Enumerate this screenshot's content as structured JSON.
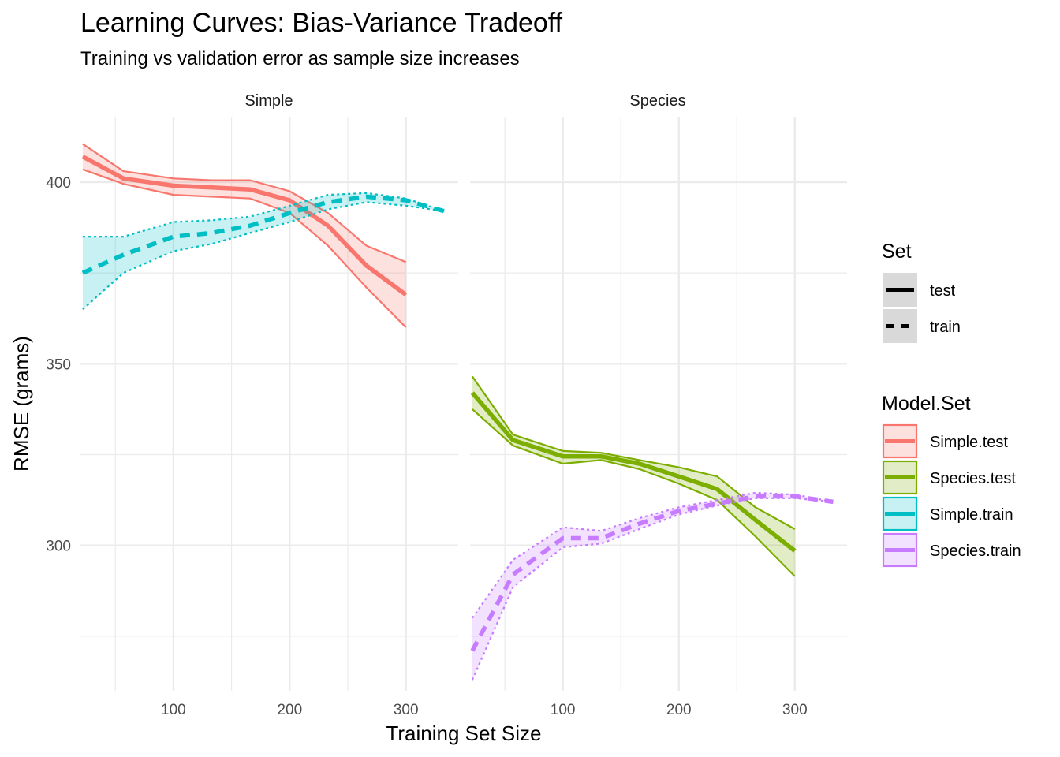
{
  "chart_data": {
    "type": "line",
    "title": "Learning Curves: Bias-Variance Tradeoff",
    "subtitle": "Training vs validation error as sample size increases",
    "xlabel": "Training Set Size",
    "ylabel": "RMSE (grams)",
    "xlim": [
      20,
      345
    ],
    "ylim": [
      260,
      418
    ],
    "x_ticks": [
      100,
      200,
      300
    ],
    "x_tick_labels": [
      "100",
      "200",
      "300"
    ],
    "y_ticks": [
      300,
      350,
      400
    ],
    "y_tick_labels": [
      "300",
      "350",
      "400"
    ],
    "grid": true,
    "facets": [
      "Simple",
      "Species"
    ],
    "legends": [
      {
        "title": "Set",
        "placement": "right",
        "entries": [
          {
            "label": "test",
            "linetype": "solid"
          },
          {
            "label": "train",
            "linetype": "dashed"
          }
        ]
      },
      {
        "title": "Model.Set",
        "placement": "right",
        "entries": [
          {
            "label": "Simple.test",
            "color": "#F8766D"
          },
          {
            "label": "Species.test",
            "color": "#7CAE00"
          },
          {
            "label": "Simple.train",
            "color": "#00BFC4"
          },
          {
            "label": "Species.train",
            "color": "#C77CFF"
          }
        ]
      }
    ],
    "series": [
      {
        "name": "Simple.test",
        "facet": "Simple",
        "set": "test",
        "color": "#F8766D",
        "x": [
          22,
          57,
          100,
          133,
          166,
          200,
          233,
          266,
          300
        ],
        "values": [
          407,
          401,
          399,
          398.5,
          398,
          395,
          388,
          377,
          369
        ],
        "lower": [
          403.5,
          399.5,
          396.5,
          396,
          395.5,
          391.5,
          382.5,
          371,
          360
        ],
        "upper": [
          410.5,
          403,
          401,
          400.5,
          400.5,
          397.5,
          391.5,
          382.5,
          378
        ]
      },
      {
        "name": "Simple.train",
        "facet": "Simple",
        "set": "train",
        "color": "#00BFC4",
        "x": [
          22,
          57,
          100,
          133,
          166,
          200,
          233,
          266,
          300,
          333
        ],
        "values": [
          375,
          380,
          385,
          386,
          388,
          391.5,
          394.5,
          396,
          395,
          392
        ],
        "lower": [
          365,
          375,
          381,
          383,
          386,
          389,
          392.5,
          394.5,
          393.5,
          392
        ],
        "upper": [
          385,
          385,
          389,
          389.5,
          390.5,
          393.5,
          396.5,
          397,
          395.5,
          392
        ]
      },
      {
        "name": "Species.test",
        "facet": "Species",
        "set": "test",
        "color": "#7CAE00",
        "x": [
          22,
          57,
          100,
          133,
          166,
          200,
          233,
          266,
          300
        ],
        "values": [
          342,
          329,
          324.5,
          324.5,
          322.5,
          319,
          315.5,
          307,
          298.5
        ],
        "lower": [
          337.5,
          327.5,
          322.5,
          323.5,
          321,
          317,
          312.5,
          302.5,
          291.5
        ],
        "upper": [
          346.5,
          330.5,
          326,
          325.5,
          323.5,
          321.5,
          319,
          310.5,
          304.5
        ]
      },
      {
        "name": "Species.train",
        "facet": "Species",
        "set": "train",
        "color": "#C77CFF",
        "x": [
          22,
          57,
          100,
          133,
          166,
          200,
          233,
          266,
          300,
          333
        ],
        "values": [
          271,
          292,
          302,
          302,
          306,
          309.5,
          311.5,
          313.5,
          313.5,
          312
        ],
        "lower": [
          263,
          288.5,
          299.5,
          300.5,
          304.5,
          308.5,
          311,
          313,
          313,
          312
        ],
        "upper": [
          280,
          296,
          305,
          304,
          307.5,
          310.5,
          312.5,
          314.5,
          314,
          312
        ]
      }
    ]
  }
}
